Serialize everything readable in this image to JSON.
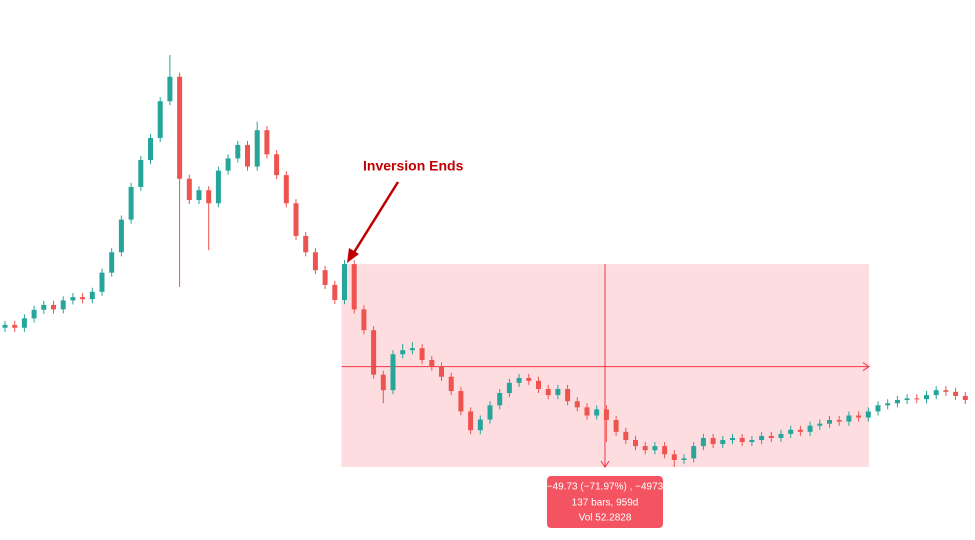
{
  "chart_data": {
    "type": "candlestick",
    "up_color": "#26a69a",
    "down_color": "#ef5350",
    "ylim": [
      1.5,
      133.8
    ],
    "annotation": "Inversion Ends",
    "measure": {
      "change": {
        "value": -49.73,
        "label": "−49.73 (−71.97%) , −4973"
      },
      "lines": [
        "137 bars, 959d",
        "Vol 52.2828"
      ],
      "color": "#f23645"
    },
    "open": [
      53.5,
      54.2,
      53.5,
      55.8,
      57.9,
      59.1,
      58.0,
      60.2,
      61.0,
      60.5,
      62.3,
      67,
      72,
      80,
      88,
      94.6,
      100,
      109,
      115,
      90,
      84.8,
      87.2,
      84,
      92,
      95,
      98.3,
      93,
      101.9,
      96,
      90.9,
      84,
      76,
      72,
      67.6,
      64,
      60.3,
      69.1,
      58,
      52.9,
      42,
      38.2,
      47,
      48,
      48.5,
      45.6,
      44,
      41.5,
      38,
      33,
      28.4,
      31,
      34.5,
      37.5,
      40,
      41.2,
      40.5,
      38.5,
      37,
      38.5,
      35.5,
      34,
      32,
      33.5,
      30.9,
      28,
      26,
      24.5,
      23.5,
      24.5,
      22.5,
      21.1,
      21.5,
      24.5,
      26.5,
      25,
      26,
      26.5,
      25.5,
      26,
      27,
      26.5,
      27.5,
      28.5,
      28,
      29.5,
      30,
      30.9,
      30.5,
      32,
      31.5,
      33,
      34.5,
      35,
      35.8,
      36.2,
      36,
      37,
      38.2,
      37.8,
      36.8
    ],
    "high": [
      55.2,
      55.2,
      56.8,
      58.9,
      60.1,
      60.1,
      61.2,
      62,
      62,
      63.3,
      68,
      73,
      81,
      89,
      95.6,
      101,
      110,
      120.3,
      116,
      91,
      88.2,
      88.2,
      93,
      96,
      99.3,
      99.3,
      104,
      102.9,
      97,
      91.9,
      85,
      77,
      73,
      68.6,
      65,
      70.1,
      70.1,
      59,
      53.9,
      43,
      48,
      49.5,
      50,
      49.5,
      46.6,
      45,
      42.5,
      39,
      34,
      32,
      35.5,
      38.5,
      41,
      42.2,
      42.2,
      41.5,
      39.5,
      39.5,
      39.5,
      36.5,
      35,
      34.5,
      34.5,
      31.9,
      29,
      27,
      25.5,
      25.5,
      25.5,
      23.5,
      22.5,
      25.5,
      27.5,
      27.5,
      27,
      27.5,
      27.5,
      27,
      28,
      28,
      28.5,
      29.5,
      29.5,
      30.5,
      31,
      31.9,
      31.9,
      33,
      33,
      34,
      35.5,
      36,
      36.8,
      37.2,
      37.2,
      38,
      39.2,
      39.2,
      38.8,
      37.8
    ],
    "low": [
      52.5,
      52.5,
      52.5,
      54.8,
      56.9,
      57,
      57,
      59.2,
      59.5,
      59.5,
      61.3,
      66,
      71,
      79,
      87,
      93.6,
      99,
      108,
      63.5,
      83.8,
      83.8,
      72.5,
      83,
      91,
      94,
      92,
      92,
      95,
      89.9,
      83,
      75,
      71,
      66.6,
      63,
      59.3,
      59.3,
      57,
      51.9,
      41,
      35,
      37.2,
      46,
      47,
      44.6,
      43,
      40.5,
      37,
      32,
      27.4,
      27.4,
      30,
      33.5,
      36.5,
      39,
      39.5,
      37.5,
      36,
      36,
      34.5,
      33,
      31,
      31,
      25.5,
      27,
      25,
      23.5,
      22.5,
      22.5,
      21.5,
      19.4,
      20.1,
      20.5,
      23.5,
      24,
      24,
      25,
      24.5,
      24.5,
      25,
      25.5,
      25.5,
      26.5,
      27,
      27,
      28.5,
      29,
      29.5,
      29.5,
      30.5,
      30.5,
      32,
      33.5,
      34,
      34.8,
      35,
      35,
      36,
      36.8,
      35.8,
      34.8
    ],
    "close": [
      54.2,
      53.5,
      55.8,
      57.9,
      59.1,
      58.0,
      60.2,
      61.0,
      60.5,
      62.3,
      67,
      72,
      80,
      88,
      94.6,
      100,
      109,
      115,
      90,
      84.8,
      87.2,
      84,
      92,
      95,
      98.3,
      93,
      101.9,
      96,
      90.9,
      84,
      76,
      72,
      67.6,
      64,
      60.3,
      69.1,
      58,
      52.9,
      42,
      38.2,
      47,
      48,
      48.5,
      45.6,
      44,
      41.5,
      38,
      33,
      28.4,
      31,
      34.5,
      37.5,
      40,
      41.2,
      40.5,
      38.5,
      37,
      38.5,
      35.5,
      34,
      32,
      33.5,
      30.9,
      28,
      26,
      24.5,
      23.5,
      24.5,
      22.5,
      21.1,
      21.5,
      24.5,
      26.5,
      25,
      26,
      26.5,
      25.5,
      26,
      27,
      26.5,
      27.5,
      28.5,
      28,
      29.5,
      30,
      30.9,
      30.5,
      32,
      31.5,
      33,
      34.5,
      35,
      35.8,
      36.2,
      36,
      37,
      38.2,
      37.8,
      36.8,
      35.8
    ]
  }
}
